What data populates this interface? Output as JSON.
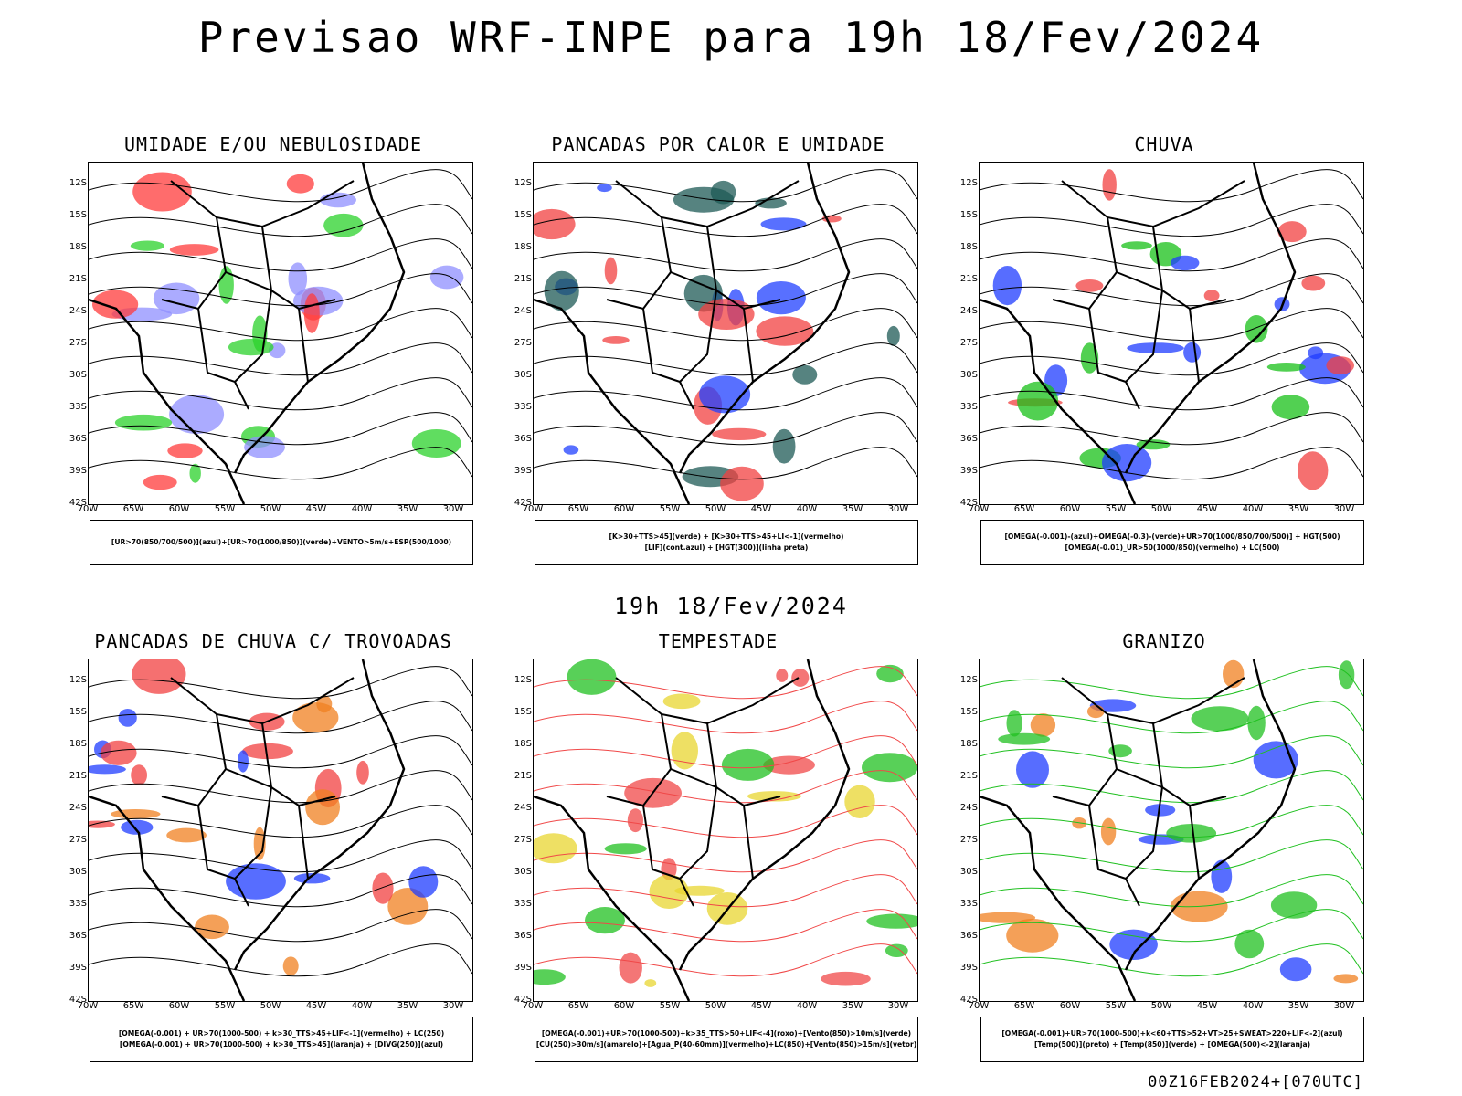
{
  "header": {
    "title": "Previsao WRF-INPE  para 19h 18/Fev/2024"
  },
  "subtitle": "19h 18/Fev/2024",
  "footer": "00Z16FEB2024+[070UTC]",
  "axes": {
    "lat_labels": [
      "12S",
      "15S",
      "18S",
      "21S",
      "24S",
      "27S",
      "30S",
      "33S",
      "36S",
      "39S",
      "42S"
    ],
    "lon_labels": [
      "70W",
      "65W",
      "60W",
      "55W",
      "50W",
      "45W",
      "40W",
      "35W",
      "30W"
    ]
  },
  "panels": [
    {
      "id": "umidade",
      "title": "UMIDADE E/OU NEBULOSIDADE",
      "legend": [
        "[UR>70(850/700/500)](azul)+[UR>70(1000/850)](verde)+VENTO>5m/s+ESP(500/1000)"
      ],
      "overlay_colors": [
        "#8f8fff",
        "#2bd12b",
        "#ff3b3b"
      ]
    },
    {
      "id": "pancadas-calor",
      "title": "PANCADAS POR CALOR E UMIDADE",
      "legend": [
        "[K>30+TTS>45](verde) + [K>30+TTS>45+LI<-1](vermelho)",
        "[LIF](cont.azul) + [HGT(300)](linha preta)"
      ],
      "overlay_colors": [
        "#f24040",
        "#1e5a55",
        "#2040ff"
      ]
    },
    {
      "id": "chuva",
      "title": "CHUVA",
      "legend": [
        "[OMEGA(-0.001)-(azul)+OMEGA(-0.3)-(verde)+UR>70(1000/850/700/500)] + HGT(500)",
        "[OMEGA(-0.01)_UR>50(1000/850)(vermelho) + LC(500)"
      ],
      "overlay_colors": [
        "#1f3cff",
        "#18c018",
        "#f24040"
      ]
    },
    {
      "id": "pancadas-trovoadas",
      "title": "PANCADAS DE CHUVA C/ TROVOADAS",
      "legend": [
        "[OMEGA(-0.001) + UR>70(1000-500) + k>30_TTS>45+LIF<-1](vermelho) + LC(250)",
        "[OMEGA(-0.001) + UR>70(1000-500) + k>30_TTS>45](laranja) + [DIVG(250)](azul)"
      ],
      "overlay_colors": [
        "#f24040",
        "#f08020",
        "#1f3cff"
      ]
    },
    {
      "id": "tempestade",
      "title": "TEMPESTADE",
      "legend": [
        "[OMEGA(-0.001)+UR>70(1000-500)+k>35_TTS>50+LIF<-4](roxo)+[Vento(850)>10m/s](verde)",
        "[CU(250)>30m/s](amarelo)+[Agua_P(40-60mm)](vermelho)+LC(850)+[Vento(850)>15m/s](vetor)"
      ],
      "overlay_colors": [
        "#e8d630",
        "#20c020",
        "#f04848"
      ]
    },
    {
      "id": "granizo",
      "title": "GRANIZO",
      "legend": [
        "[OMEGA(-0.001)+UR>70(1000-500)+k<60+TTS>52+VT>25+SWEAT>220+LIF<-2](azul)",
        "[Temp(500)](preto) + [Temp(850)](verde) + [OMEGA(500)<-2](laranja)"
      ],
      "overlay_colors": [
        "#20c020",
        "#f08020",
        "#1f3cff"
      ]
    }
  ]
}
